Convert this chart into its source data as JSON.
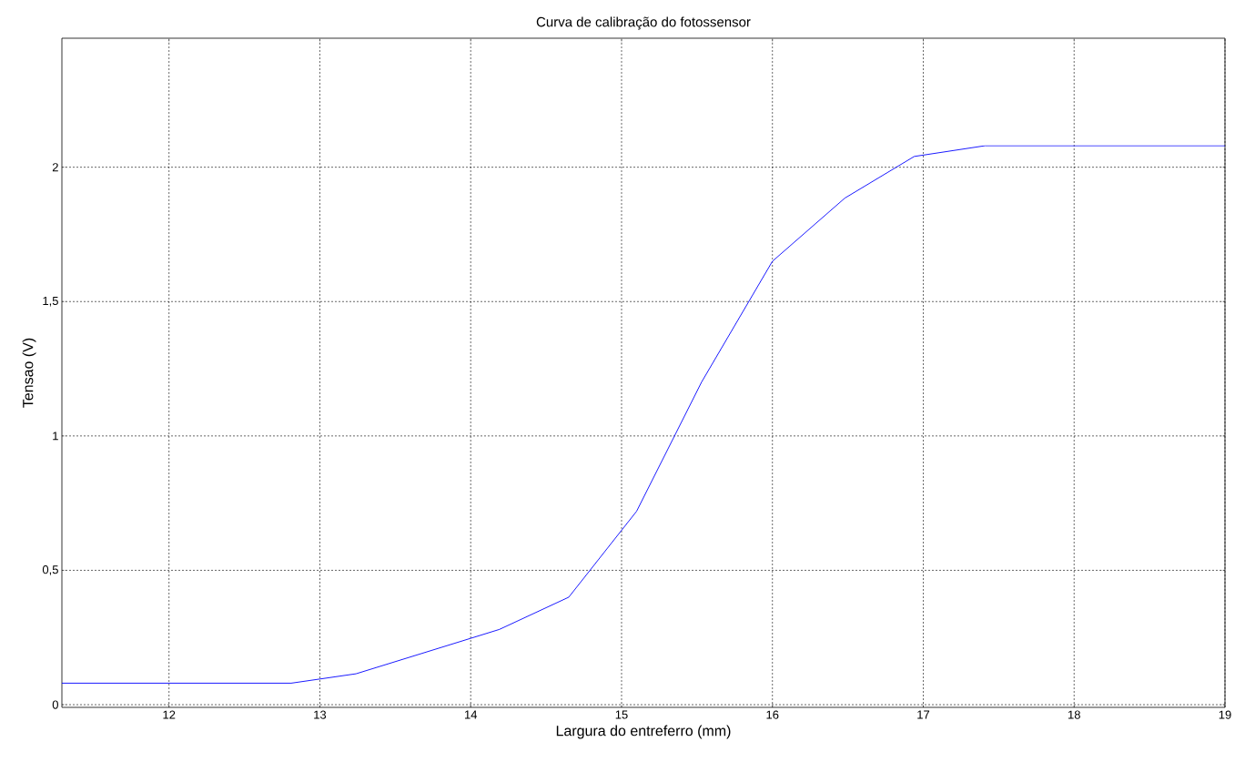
{
  "chart_data": {
    "type": "line",
    "title": "Curva de calibração do fotossensor",
    "xlabel": "Largura do entreferro (mm)",
    "ylabel": "Tensao (V)",
    "x": [
      11.29,
      12.81,
      13.24,
      14.19,
      14.65,
      15.1,
      15.53,
      16.0,
      16.48,
      16.94,
      17.41,
      19.0
    ],
    "series": [
      {
        "color": "#0000ff",
        "values": [
          0.08,
          0.08,
          0.115,
          0.28,
          0.4,
          0.72,
          1.2,
          1.65,
          1.885,
          2.04,
          2.08,
          2.08
        ]
      }
    ],
    "xlim": [
      11.29,
      19
    ],
    "ylim": [
      -0.01,
      2.48
    ],
    "xticks": [
      12,
      13,
      14,
      15,
      16,
      17,
      18,
      19
    ],
    "yticks": [
      0,
      {
        "value": 0.5,
        "label": "0,5"
      },
      1,
      {
        "value": 1.5,
        "label": "1,5"
      },
      2
    ],
    "grid": true,
    "marker": "none",
    "line_style": "solid"
  }
}
